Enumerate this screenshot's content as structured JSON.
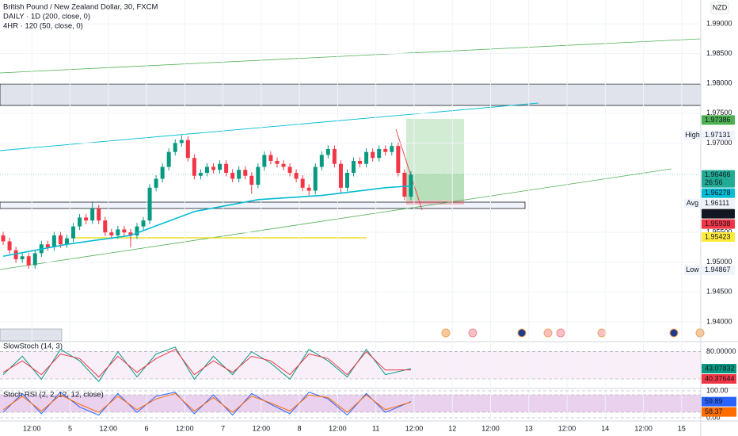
{
  "chart_data": {
    "type": "candlestick",
    "title": "British Pound / New Zealand Dollar, 30, FXCM",
    "indicators": [
      "DAILY · 1D (200, close, 0)",
      "4HR · 120 (50, close, 0)"
    ],
    "currency": "NZD",
    "up_color": "#089981",
    "down_color": "#f23645",
    "xlim": [
      0,
      110
    ],
    "xticks": [
      {
        "value": 5,
        "label": "12:00"
      },
      {
        "value": 11,
        "label": "5"
      },
      {
        "value": 17,
        "label": "12:00"
      },
      {
        "value": 23,
        "label": "6"
      },
      {
        "value": 29,
        "label": "12:00"
      },
      {
        "value": 35,
        "label": "7"
      },
      {
        "value": 41,
        "label": "12:00"
      },
      {
        "value": 47,
        "label": "8"
      },
      {
        "value": 53,
        "label": "12:00"
      },
      {
        "value": 59,
        "label": "11"
      },
      {
        "value": 65,
        "label": "12:00"
      },
      {
        "value": 71,
        "label": "12"
      },
      {
        "value": 77,
        "label": "12:00"
      },
      {
        "value": 83,
        "label": "13"
      },
      {
        "value": 89,
        "label": "12:00"
      },
      {
        "value": 95,
        "label": "14"
      },
      {
        "value": 101,
        "label": "12:00"
      },
      {
        "value": 107,
        "label": "15"
      }
    ],
    "ylim": [
      1.9368,
      1.994
    ],
    "yticks": [
      {
        "value": 1.99,
        "label": "1.99000"
      },
      {
        "value": 1.985,
        "label": "1.98500"
      },
      {
        "value": 1.98,
        "label": "1.98000"
      },
      {
        "value": 1.975,
        "label": "1.97500"
      },
      {
        "value": 1.97,
        "label": "1.97000"
      },
      {
        "value": 1.955,
        "label": "1.95500"
      },
      {
        "value": 1.95,
        "label": "1.95000"
      },
      {
        "value": 1.945,
        "label": "1.94500"
      },
      {
        "value": 1.94,
        "label": "1.94000"
      }
    ],
    "grid": true,
    "open": [
      1.9545,
      1.9535,
      1.952,
      1.9505,
      1.951,
      1.9495,
      1.9515,
      1.953,
      1.9525,
      1.9545,
      1.953,
      1.954,
      1.956,
      1.9575,
      1.957,
      1.959,
      1.957,
      1.955,
      1.9545,
      1.9555,
      1.955,
      1.9545,
      1.956,
      1.957,
      1.9625,
      1.964,
      1.966,
      1.9685,
      1.97,
      1.9705,
      1.9675,
      1.9645,
      1.965,
      1.966,
      1.9655,
      1.9665,
      1.965,
      1.964,
      1.9655,
      1.9645,
      1.963,
      1.966,
      1.968,
      1.967,
      1.9665,
      1.966,
      1.965,
      1.964,
      1.9625,
      1.962,
      1.966,
      1.968,
      1.969,
      1.9665,
      1.9625,
      1.965,
      1.967,
      1.9665,
      1.9685,
      1.9675,
      1.969,
      1.9685,
      1.9695,
      1.965,
      1.961
    ],
    "high": [
      1.9551,
      1.9541,
      1.9526,
      1.9516,
      1.9516,
      1.9521,
      1.9536,
      1.9536,
      1.9551,
      1.9551,
      1.9546,
      1.9566,
      1.9581,
      1.9581,
      1.96,
      1.9596,
      1.9576,
      1.9556,
      1.9561,
      1.9561,
      1.9556,
      1.9566,
      1.9576,
      1.9631,
      1.9646,
      1.9666,
      1.9691,
      1.9706,
      1.9713,
      1.9711,
      1.9681,
      1.9656,
      1.9666,
      1.9666,
      1.9671,
      1.9671,
      1.9656,
      1.9661,
      1.9661,
      1.9651,
      1.9666,
      1.9686,
      1.9686,
      1.9676,
      1.9671,
      1.9666,
      1.9656,
      1.9646,
      1.9631,
      1.9666,
      1.9686,
      1.9696,
      1.9696,
      1.9671,
      1.9656,
      1.9676,
      1.9676,
      1.9691,
      1.9691,
      1.9696,
      1.9696,
      1.9701,
      1.9701,
      1.9656,
      1.9653
    ],
    "low": [
      1.9529,
      1.9514,
      1.9499,
      1.9499,
      1.9489,
      1.9489,
      1.9509,
      1.9519,
      1.9519,
      1.9524,
      1.9524,
      1.9534,
      1.9554,
      1.9564,
      1.9564,
      1.9564,
      1.9544,
      1.9539,
      1.9539,
      1.9544,
      1.9525,
      1.9539,
      1.9554,
      1.9564,
      1.9619,
      1.9634,
      1.9654,
      1.9679,
      1.9694,
      1.9669,
      1.9639,
      1.9639,
      1.9644,
      1.9649,
      1.9649,
      1.9644,
      1.9634,
      1.9634,
      1.9639,
      1.9615,
      1.9624,
      1.9654,
      1.9664,
      1.9659,
      1.9654,
      1.9644,
      1.9634,
      1.9619,
      1.9612,
      1.9614,
      1.9654,
      1.9674,
      1.9659,
      1.9615,
      1.9619,
      1.9644,
      1.9659,
      1.9659,
      1.9669,
      1.9669,
      1.9679,
      1.9679,
      1.9644,
      1.9604,
      1.9604
    ],
    "close": [
      1.9535,
      1.952,
      1.9505,
      1.951,
      1.9495,
      1.9515,
      1.953,
      1.9525,
      1.9545,
      1.953,
      1.954,
      1.956,
      1.9575,
      1.957,
      1.959,
      1.957,
      1.955,
      1.9545,
      1.9555,
      1.955,
      1.9545,
      1.956,
      1.957,
      1.9625,
      1.964,
      1.966,
      1.9685,
      1.97,
      1.9705,
      1.9675,
      1.9645,
      1.965,
      1.966,
      1.9655,
      1.9665,
      1.965,
      1.964,
      1.9655,
      1.9645,
      1.963,
      1.966,
      1.968,
      1.967,
      1.9665,
      1.966,
      1.965,
      1.964,
      1.9625,
      1.962,
      1.966,
      1.968,
      1.969,
      1.9665,
      1.9625,
      1.965,
      1.967,
      1.9665,
      1.9685,
      1.9675,
      1.969,
      1.9685,
      1.9695,
      1.965,
      1.961,
      1.9647
    ],
    "ma": {
      "color": "#00bcd4",
      "x": [
        0,
        10,
        20,
        25,
        30,
        40,
        50,
        60,
        64
      ],
      "values": [
        1.951,
        1.953,
        1.9545,
        1.9565,
        1.9585,
        1.9605,
        1.9612,
        1.9625,
        1.9628
      ]
    },
    "price_labels": [
      {
        "value": 1.97386,
        "color": "#4caf50"
      },
      {
        "value": 1.97131,
        "tag": "High"
      },
      {
        "value": 1.96466,
        "color": "#22ab94",
        "countdown": "26:56"
      },
      {
        "value": 1.96278,
        "color": "#00bcd4"
      },
      {
        "value": 1.96111,
        "tag": "Avg"
      },
      {
        "value": 1.96067,
        "color": "#131722"
      },
      {
        "value": 1.95938,
        "color": "#f23645"
      },
      {
        "value": 1.95423,
        "color": "#ffeb3b"
      },
      {
        "value": 1.94867,
        "tag": "Low"
      }
    ],
    "panes": [
      {
        "title": "SlowStoch (14, 3)",
        "ylim": [
          0,
          100
        ],
        "yticks": [
          {
            "value": 80,
            "label": "80.00000"
          }
        ],
        "x": [
          0,
          3,
          6,
          9,
          12,
          15,
          18,
          21,
          24,
          27,
          30,
          33,
          36,
          39,
          42,
          45,
          48,
          51,
          54,
          57,
          60,
          64
        ],
        "series": [
          {
            "color": "#089981",
            "values": [
              30,
              70,
              20,
              85,
              60,
              15,
              80,
              25,
              75,
              90,
              20,
              70,
              30,
              80,
              55,
              20,
              85,
              60,
              25,
              85,
              30,
              43.07832
            ]
          },
          {
            "color": "#f23645",
            "values": [
              35,
              60,
              30,
              75,
              65,
              25,
              70,
              35,
              65,
              85,
              30,
              60,
              35,
              70,
              60,
              30,
              75,
              65,
              30,
              80,
              40,
              40.37644
            ]
          }
        ]
      },
      {
        "title": "Stoch RSI (2, 2, 12, 12, close)",
        "ylim": [
          0,
          100
        ],
        "yticks": [
          {
            "value": 100,
            "label": "100.00"
          },
          {
            "value": 0,
            "label": "0.00"
          }
        ],
        "x": [
          0,
          3,
          6,
          9,
          12,
          15,
          18,
          21,
          24,
          27,
          30,
          33,
          36,
          39,
          42,
          45,
          48,
          51,
          54,
          57,
          60,
          64
        ],
        "series": [
          {
            "color": "#2962ff",
            "values": [
              20,
              90,
              15,
              95,
              40,
              10,
              90,
              20,
              80,
              95,
              15,
              85,
              10,
              90,
              50,
              15,
              95,
              70,
              10,
              90,
              20,
              59.89
            ]
          },
          {
            "color": "#ff6d00",
            "values": [
              30,
              80,
              25,
              85,
              50,
              20,
              80,
              30,
              70,
              90,
              25,
              75,
              20,
              80,
              55,
              25,
              85,
              75,
              20,
              85,
              30,
              58.37
            ]
          }
        ]
      }
    ]
  }
}
